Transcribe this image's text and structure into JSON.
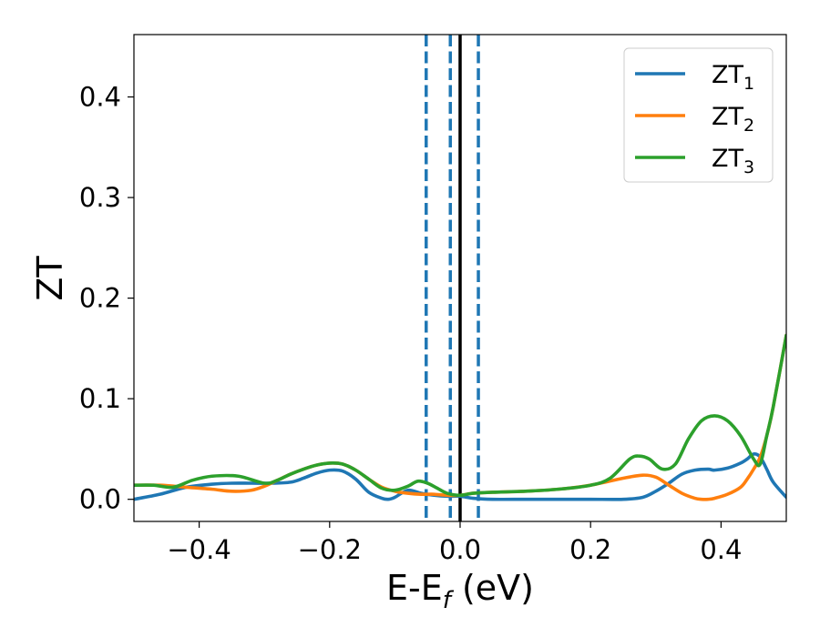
{
  "chart_data": {
    "type": "line",
    "xlabel": "E-E",
    "xlabel_sub": "f",
    "xlabel_unit": " (eV)",
    "ylabel": "ZT",
    "xlim": [
      -0.5,
      0.5
    ],
    "ylim": [
      -0.022,
      0.462
    ],
    "xticks": [
      -0.4,
      -0.2,
      0.0,
      0.2,
      0.4
    ],
    "xtick_labels": [
      "−0.4",
      "−0.2",
      "0.0",
      "0.2",
      "0.4"
    ],
    "yticks": [
      0.0,
      0.1,
      0.2,
      0.3,
      0.4
    ],
    "ytick_labels": [
      "0.0",
      "0.1",
      "0.2",
      "0.3",
      "0.4"
    ],
    "legend_position": "top-right",
    "vlines": [
      {
        "x": -0.052,
        "style": "dashed",
        "color": "#1f77b4"
      },
      {
        "x": -0.015,
        "style": "dashed",
        "color": "#1f77b4"
      },
      {
        "x": 0.0,
        "style": "solid",
        "color": "#000000"
      },
      {
        "x": 0.028,
        "style": "dashed",
        "color": "#1f77b4"
      }
    ],
    "series": [
      {
        "name": "ZT",
        "sub": "1",
        "color": "#1f77b4",
        "x": [
          -0.5,
          -0.46,
          -0.42,
          -0.38,
          -0.35,
          -0.32,
          -0.29,
          -0.26,
          -0.24,
          -0.22,
          -0.2,
          -0.18,
          -0.16,
          -0.14,
          -0.12,
          -0.11,
          -0.1,
          -0.08,
          -0.06,
          -0.04,
          -0.02,
          0.0,
          0.02,
          0.05,
          0.1,
          0.15,
          0.2,
          0.25,
          0.28,
          0.3,
          0.32,
          0.34,
          0.36,
          0.38,
          0.39,
          0.41,
          0.43,
          0.44,
          0.45,
          0.46,
          0.47,
          0.48,
          0.5
        ],
        "y": [
          0.0,
          0.005,
          0.012,
          0.015,
          0.016,
          0.016,
          0.016,
          0.017,
          0.021,
          0.026,
          0.029,
          0.028,
          0.02,
          0.007,
          0.001,
          0.0,
          0.002,
          0.009,
          0.006,
          0.004,
          0.003,
          0.003,
          0.001,
          0.0,
          0.0,
          0.0,
          0.0,
          0.0,
          0.002,
          0.008,
          0.016,
          0.025,
          0.029,
          0.03,
          0.029,
          0.031,
          0.036,
          0.04,
          0.045,
          0.042,
          0.03,
          0.017,
          0.002
        ]
      },
      {
        "name": "ZT",
        "sub": "2",
        "color": "#ff7f0e",
        "x": [
          -0.5,
          -0.46,
          -0.42,
          -0.38,
          -0.35,
          -0.32,
          -0.3,
          -0.28,
          -0.26,
          -0.24,
          -0.22,
          -0.2,
          -0.18,
          -0.16,
          -0.14,
          -0.12,
          -0.1,
          -0.08,
          -0.06,
          -0.04,
          -0.02,
          0.0,
          0.02,
          0.05,
          0.1,
          0.15,
          0.2,
          0.25,
          0.28,
          0.3,
          0.32,
          0.34,
          0.36,
          0.37,
          0.38,
          0.39,
          0.41,
          0.43,
          0.44,
          0.45,
          0.46,
          0.47,
          0.48,
          0.5
        ],
        "y": [
          0.014,
          0.014,
          0.012,
          0.01,
          0.008,
          0.009,
          0.013,
          0.019,
          0.025,
          0.03,
          0.034,
          0.036,
          0.035,
          0.029,
          0.02,
          0.012,
          0.008,
          0.006,
          0.005,
          0.005,
          0.004,
          0.004,
          0.006,
          0.007,
          0.008,
          0.01,
          0.014,
          0.021,
          0.024,
          0.022,
          0.014,
          0.006,
          0.001,
          0.0,
          0.0,
          0.001,
          0.005,
          0.012,
          0.02,
          0.03,
          0.042,
          0.063,
          0.092,
          0.163
        ]
      },
      {
        "name": "ZT",
        "sub": "3",
        "color": "#2ca02c",
        "x": [
          -0.5,
          -0.47,
          -0.44,
          -0.41,
          -0.38,
          -0.34,
          -0.3,
          -0.28,
          -0.26,
          -0.24,
          -0.22,
          -0.2,
          -0.18,
          -0.16,
          -0.14,
          -0.12,
          -0.1,
          -0.08,
          -0.065,
          -0.05,
          -0.035,
          -0.02,
          0.0,
          0.02,
          0.05,
          0.1,
          0.15,
          0.2,
          0.23,
          0.26,
          0.275,
          0.29,
          0.31,
          0.33,
          0.35,
          0.37,
          0.39,
          0.41,
          0.43,
          0.45,
          0.46,
          0.47,
          0.48,
          0.5
        ],
        "y": [
          0.014,
          0.014,
          0.012,
          0.019,
          0.023,
          0.023,
          0.016,
          0.019,
          0.025,
          0.03,
          0.034,
          0.036,
          0.035,
          0.029,
          0.02,
          0.011,
          0.009,
          0.013,
          0.018,
          0.016,
          0.011,
          0.006,
          0.004,
          0.006,
          0.007,
          0.008,
          0.01,
          0.014,
          0.021,
          0.04,
          0.043,
          0.04,
          0.03,
          0.035,
          0.06,
          0.078,
          0.083,
          0.078,
          0.063,
          0.04,
          0.035,
          0.063,
          0.092,
          0.163
        ]
      }
    ]
  }
}
